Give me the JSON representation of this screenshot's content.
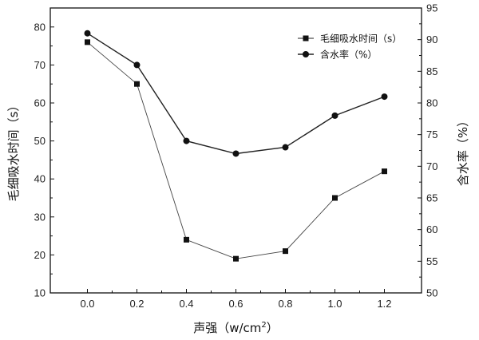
{
  "chart_data": {
    "type": "line",
    "xlabel_base": "声强（w/cm",
    "xlabel_sup": "2",
    "xlabel_tail": "）",
    "ylabel_left": "毛细吸水时间（s）",
    "ylabel_right": "含水率（%）",
    "x_ticks": [
      "0.0",
      "0.2",
      "0.4",
      "0.6",
      "0.8",
      "1.0",
      "1.2"
    ],
    "y_left_ticks": [
      "10",
      "20",
      "30",
      "40",
      "50",
      "60",
      "70",
      "80"
    ],
    "y_right_ticks": [
      "50",
      "55",
      "60",
      "65",
      "70",
      "75",
      "80",
      "85",
      "90",
      "95"
    ],
    "xlim": [
      -0.15,
      1.35
    ],
    "ylim_left": [
      10,
      85
    ],
    "ylim_right": [
      50,
      95
    ],
    "x": [
      0.0,
      0.2,
      0.4,
      0.6,
      0.8,
      1.0,
      1.2
    ],
    "series": [
      {
        "name": "毛细吸水时间（s）",
        "axis": "left",
        "marker": "square",
        "values": [
          76,
          65,
          24,
          19,
          21,
          35,
          42
        ]
      },
      {
        "name": "含水率（%）",
        "axis": "right",
        "marker": "circle",
        "values": [
          91,
          86,
          74,
          72,
          73,
          78,
          81
        ]
      }
    ],
    "legend_position": "top-right",
    "grid": false
  }
}
